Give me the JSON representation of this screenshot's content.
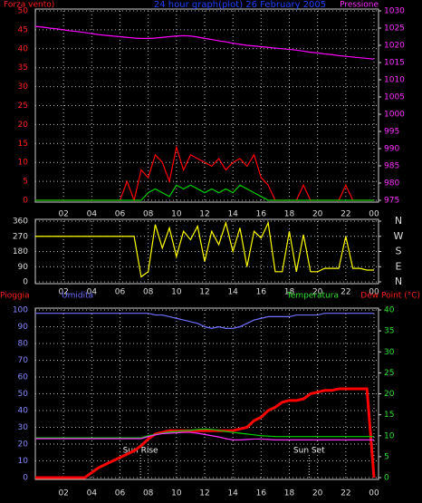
{
  "chart_data": [
    {
      "type": "line",
      "title": "24 hour graph(plot) 26 February 2005",
      "x": [
        0,
        0.5,
        1,
        1.5,
        2,
        2.5,
        3,
        3.5,
        4,
        4.5,
        5,
        5.5,
        6,
        6.5,
        7,
        7.5,
        8,
        8.5,
        9,
        9.5,
        10,
        10.5,
        11,
        11.5,
        12,
        12.5,
        13,
        13.5,
        14,
        14.5,
        15,
        15.5,
        16,
        16.5,
        17,
        17.5,
        18,
        18.5,
        19,
        19.5,
        20,
        20.5,
        21,
        21.5,
        22,
        22.5,
        23,
        23.5,
        24
      ],
      "xlim": [
        0,
        24
      ],
      "xticks": [
        {
          "value": 2,
          "label": "02"
        },
        {
          "value": 4,
          "label": "04"
        },
        {
          "value": 6,
          "label": "06"
        },
        {
          "value": 8,
          "label": "08"
        },
        10,
        12,
        14,
        16,
        18,
        20,
        22,
        {
          "value": 24,
          "label": "00"
        }
      ],
      "ylim": [
        0,
        50
      ],
      "yticks": [
        0,
        5,
        10,
        15,
        20,
        25,
        30,
        35,
        40,
        45,
        50
      ],
      "y2lim": [
        975,
        1030
      ],
      "y2ticks": [
        975,
        980,
        985,
        990,
        995,
        1000,
        1005,
        1010,
        1015,
        1020,
        1025,
        1030
      ],
      "grid": true,
      "series": [
        {
          "name": "Forza vento)",
          "color": "#ff0000",
          "values": [
            0,
            0,
            0,
            0,
            0,
            0,
            0,
            0,
            0,
            0,
            0,
            0,
            0,
            5,
            0,
            8,
            6,
            12,
            10,
            5,
            14,
            8,
            12,
            11,
            10,
            9,
            11,
            8,
            10,
            11,
            9,
            12,
            6,
            4,
            0,
            0,
            0,
            0,
            4,
            0,
            0,
            0,
            0,
            0,
            4,
            0,
            0,
            0,
            0
          ]
        },
        {
          "color": "#00cc00",
          "values": [
            0,
            0,
            0,
            0,
            0,
            0,
            0,
            0,
            0,
            0,
            0,
            0,
            0,
            0,
            0,
            0,
            2,
            3,
            2,
            1,
            4,
            3,
            4,
            3,
            2,
            3,
            2,
            3,
            2,
            4,
            3,
            2,
            1,
            0,
            0,
            0,
            0,
            0,
            0,
            0,
            0,
            0,
            0,
            0,
            0,
            0,
            0,
            0,
            0
          ]
        },
        {
          "name": "Pressione",
          "color": "#ff00ff",
          "axis": "y2",
          "values": [
            1025.5,
            1025.3,
            1025,
            1024.8,
            1024.5,
            1024.2,
            1024,
            1023.7,
            1023.4,
            1023.1,
            1022.9,
            1022.7,
            1022.5,
            1022.3,
            1022.1,
            1022,
            1022,
            1022.1,
            1022.3,
            1022.5,
            1022.7,
            1022.8,
            1022.7,
            1022.4,
            1022,
            1021.7,
            1021.3,
            1021,
            1020.6,
            1020.3,
            1020,
            1019.8,
            1019.6,
            1019.4,
            1019.2,
            1019,
            1018.8,
            1018.6,
            1018.3,
            1018,
            1017.8,
            1017.5,
            1017.3,
            1017,
            1016.8,
            1016.6,
            1016.4,
            1016.2,
            1016
          ]
        }
      ]
    },
    {
      "type": "line",
      "x": [
        0,
        0.5,
        1,
        1.5,
        2,
        2.5,
        3,
        3.5,
        4,
        4.5,
        5,
        5.5,
        6,
        6.5,
        7,
        7.5,
        8,
        8.5,
        9,
        9.5,
        10,
        10.5,
        11,
        11.5,
        12,
        12.5,
        13,
        13.5,
        14,
        14.5,
        15,
        15.5,
        16,
        16.5,
        17,
        17.5,
        18,
        18.5,
        19,
        19.5,
        20,
        20.5,
        21,
        21.5,
        22,
        22.5,
        23,
        23.5,
        24
      ],
      "xlim": [
        0,
        24
      ],
      "xticks": [
        {
          "value": 2,
          "label": "02"
        },
        {
          "value": 4,
          "label": "04"
        },
        {
          "value": 6,
          "label": "06"
        },
        {
          "value": 8,
          "label": "08"
        },
        10,
        12,
        14,
        16,
        18,
        20,
        22,
        {
          "value": 24,
          "label": "00"
        }
      ],
      "ylim": [
        0,
        360
      ],
      "yticks": [
        0,
        90,
        180,
        270,
        360
      ],
      "y2lim": [
        0,
        360
      ],
      "y2ticks": [
        {
          "value": 0,
          "label": "N"
        },
        {
          "value": 90,
          "label": "E"
        },
        {
          "value": 180,
          "label": "S"
        },
        {
          "value": 270,
          "label": "W"
        },
        {
          "value": 360,
          "label": "N"
        }
      ],
      "grid": true,
      "series": [
        {
          "color": "#ffff00",
          "values": [
            270,
            270,
            270,
            270,
            270,
            270,
            270,
            270,
            270,
            270,
            270,
            270,
            270,
            270,
            270,
            30,
            60,
            340,
            200,
            320,
            150,
            300,
            250,
            330,
            120,
            300,
            220,
            350,
            180,
            320,
            90,
            300,
            260,
            350,
            60,
            60,
            300,
            60,
            280,
            60,
            60,
            80,
            80,
            80,
            270,
            80,
            80,
            70,
            70
          ]
        }
      ]
    },
    {
      "type": "line",
      "x": [
        0,
        0.5,
        1,
        1.5,
        2,
        2.5,
        3,
        3.5,
        4,
        4.5,
        5,
        5.5,
        6,
        6.5,
        7,
        7.5,
        8,
        8.5,
        9,
        9.5,
        10,
        10.5,
        11,
        11.5,
        12,
        12.5,
        13,
        13.5,
        14,
        14.5,
        15,
        15.5,
        16,
        16.5,
        17,
        17.5,
        18,
        18.5,
        19,
        19.5,
        20,
        20.5,
        21,
        21.5,
        22,
        22.5,
        23,
        23.5,
        24
      ],
      "xlim": [
        0,
        24
      ],
      "xticks": [
        {
          "value": 2,
          "label": "02"
        },
        {
          "value": 4,
          "label": "04"
        },
        {
          "value": 6,
          "label": "06"
        },
        {
          "value": 8,
          "label": "08"
        },
        10,
        12,
        14,
        16,
        18,
        20,
        22,
        {
          "value": 24,
          "label": "00"
        }
      ],
      "ylim": [
        0,
        100
      ],
      "yticks": [
        0,
        10,
        20,
        30,
        40,
        50,
        60,
        70,
        80,
        90,
        100
      ],
      "y2lim": [
        0,
        40
      ],
      "y2ticks": [
        0,
        5,
        10,
        15,
        20,
        25,
        30,
        35,
        40
      ],
      "grid": true,
      "annotations": [
        {
          "text": "Sun Rise",
          "x": 7.45
        },
        {
          "text": "Sun Set",
          "x": 19.4
        }
      ],
      "series": [
        {
          "name": "Pioggia",
          "color": "#ff0000",
          "values": [
            0,
            0,
            0,
            0,
            0,
            0,
            0,
            0,
            3,
            6,
            8,
            10,
            12,
            14,
            16,
            19,
            23,
            26,
            27,
            28,
            28,
            28,
            28,
            28,
            28,
            28,
            28,
            28,
            28,
            29,
            30,
            34,
            36,
            40,
            42,
            45,
            46,
            46,
            47,
            50,
            51,
            52,
            52,
            53,
            53,
            53,
            53,
            53,
            0
          ]
        },
        {
          "name": "Umidita",
          "color": "#7070ff",
          "values": [
            98,
            98,
            98,
            98,
            98,
            98,
            98,
            98,
            98,
            98,
            98,
            98,
            98,
            98,
            98,
            98,
            98,
            97,
            97,
            96,
            95,
            94,
            93,
            92,
            90,
            89,
            90,
            89,
            89,
            90,
            92,
            94,
            95,
            96,
            96,
            96,
            96,
            97,
            97,
            97,
            97,
            98,
            98,
            98,
            98,
            98,
            98,
            98,
            98
          ]
        },
        {
          "name": "Temperatura",
          "color": "#00cc00",
          "axis": "y2",
          "values": [
            9.5,
            9.5,
            9.5,
            9.5,
            9.5,
            9.5,
            9.5,
            9.5,
            9.5,
            9.5,
            9.5,
            9.5,
            9.5,
            9.5,
            9.5,
            9.5,
            10,
            10.3,
            10.6,
            10.9,
            11,
            11.2,
            11.3,
            11.5,
            11.6,
            11.5,
            11.3,
            11,
            10.8,
            10.6,
            10.4,
            10.2,
            10,
            9.9,
            9.8,
            9.8,
            9.8,
            9.8,
            9.8,
            9.8,
            9.8,
            9.8,
            9.8,
            9.8,
            9.8,
            9.8,
            9.8,
            9.8,
            9.8
          ]
        },
        {
          "name": "Dew Point (°C)",
          "color": "#ff30ff",
          "axis": "y2",
          "values": [
            9.3,
            9.3,
            9.3,
            9.3,
            9.3,
            9.3,
            9.3,
            9.3,
            9.3,
            9.3,
            9.3,
            9.3,
            9.3,
            9.3,
            9.3,
            9.3,
            9.8,
            10.2,
            10.5,
            10.6,
            10.7,
            10.8,
            10.8,
            10.6,
            10.3,
            10,
            9.7,
            9.3,
            9,
            9,
            9.1,
            9.2,
            9.2,
            9.1,
            9,
            9,
            9,
            9,
            9,
            9,
            9,
            9,
            9,
            9,
            9,
            9,
            9,
            9,
            9
          ]
        }
      ]
    }
  ]
}
